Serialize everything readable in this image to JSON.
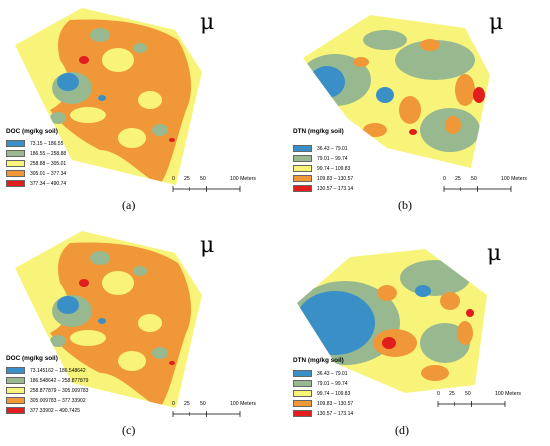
{
  "colors": {
    "class1": "#3a8fc7",
    "class2": "#98b98f",
    "class3": "#f8f47a",
    "class4": "#f09838",
    "class5": "#e01e1e"
  },
  "north_arrow_icon": "north-arrow-mu-icon",
  "panels": {
    "a": {
      "caption": "(a)",
      "north_symbol": "μ",
      "legend_title": "DOC (mg/kg soil)",
      "legend": [
        "73.15 – 186.55",
        "186.55 – 258.88",
        "258.88 – 305.01",
        "305.01 – 377.34",
        "377.34 – 490.74"
      ],
      "scale": {
        "ticks": [
          "0",
          "25",
          "50",
          "100 Meters"
        ]
      }
    },
    "b": {
      "caption": "(b)",
      "north_symbol": "μ",
      "legend_title": "DTN (mg/kg soil)",
      "legend": [
        "36.43 – 79.01",
        "79.01 – 99.74",
        "99.74 – 109.83",
        "109.83 – 130.57",
        "130.57 – 173.14"
      ],
      "scale": {
        "ticks": [
          "0",
          "25",
          "50",
          "100 Meters"
        ]
      }
    },
    "c": {
      "caption": "(c)",
      "north_symbol": "μ",
      "legend_title": "DOC (mg/kg soil)",
      "legend": [
        "73.145162 – 186.548642",
        "186.548642 – 258.877879",
        "258.877879 – 305.009783",
        "305.009783 – 377.33902",
        "377.33902 – 490.7425"
      ],
      "scale": {
        "ticks": [
          "0",
          "25",
          "50",
          "100 Meters"
        ]
      }
    },
    "d": {
      "caption": "(d)",
      "north_symbol": "μ",
      "legend_title": "DTN (mg/kg soil)",
      "legend": [
        "36.43 – 79.01",
        "79.01 – 99.74",
        "99.74 – 109.83",
        "109.83 – 130.57",
        "130.57 – 173.14"
      ],
      "scale": {
        "ticks": [
          "0",
          "25",
          "50",
          "100 Meters"
        ]
      }
    }
  }
}
